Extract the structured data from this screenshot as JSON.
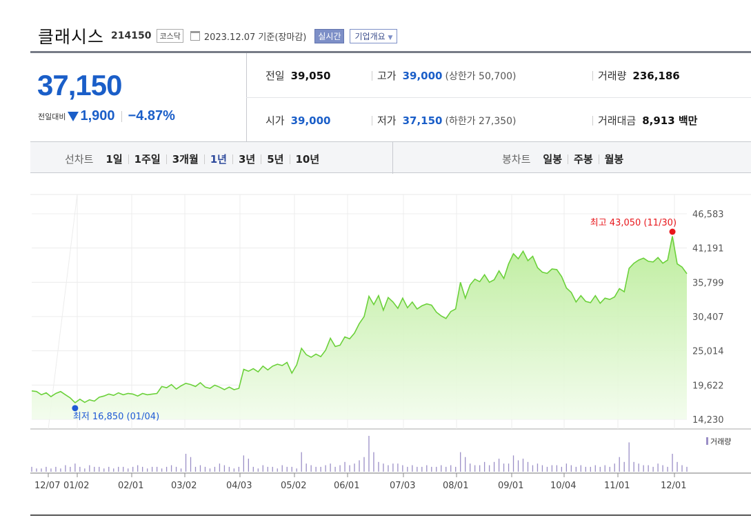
{
  "header": {
    "name": "클래시스",
    "code": "214150",
    "market": "코스닥",
    "date": "2023.12.07 기준(장마감)",
    "realtime": "실시간",
    "corp_info": "기업개요"
  },
  "price": {
    "current": "37,150",
    "change_label": "전일대비",
    "change": "1,900",
    "change_pct": "−4.87%",
    "direction": "down",
    "color_down": "#1a5ec8"
  },
  "stats": {
    "prev_label": "전일",
    "prev": "39,050",
    "high_label": "고가",
    "high": "39,000",
    "upper_limit": "(상한가 50,700)",
    "volume_label": "거래량",
    "volume": "236,186",
    "open_label": "시가",
    "open": "39,000",
    "low_label": "저가",
    "low": "37,150",
    "lower_limit": "(하한가 27,350)",
    "amount_label": "거래대금",
    "amount": "8,913 백만"
  },
  "line_tabs": {
    "label": "선차트",
    "items": [
      "1일",
      "1주일",
      "3개월",
      "1년",
      "3년",
      "5년",
      "10년"
    ],
    "selected": "1년"
  },
  "candle_tabs": {
    "label": "봉차트",
    "items": [
      "일봉",
      "주봉",
      "월봉"
    ]
  },
  "chart_data": {
    "type": "area",
    "y_ticks": [
      "46,583",
      "41,191",
      "35,799",
      "30,407",
      "25,014",
      "19,622",
      "14,230"
    ],
    "ylim": [
      14230,
      46583
    ],
    "x_ticks": [
      "12/07",
      "01/02",
      "02/01",
      "03/02",
      "04/03",
      "05/02",
      "06/01",
      "07/03",
      "08/01",
      "09/01",
      "10/04",
      "11/01",
      "12/01"
    ],
    "max_label": "최고 43,050 (11/30)",
    "min_label": "최저 16,850 (01/04)",
    "volume_label": "거래량",
    "series": [
      {
        "values": [
          18700,
          18600,
          18100,
          18400,
          17800,
          18300,
          18600,
          18100,
          17600,
          16850,
          17400,
          16900,
          17300,
          17100,
          17700,
          17900,
          18200,
          18000,
          18400,
          18100,
          18300,
          18200,
          17900,
          18300,
          18100,
          18200,
          18300,
          19400,
          19200,
          19700,
          19000,
          19500,
          19900,
          19700,
          19400,
          20000,
          19300,
          19100,
          19600,
          19300,
          18900,
          19300,
          18900,
          19100,
          22100,
          21800,
          22200,
          21700,
          22600,
          22000,
          22600,
          22900,
          22700,
          23200,
          21500,
          22800,
          25400,
          24400,
          24000,
          24500,
          24100,
          25100,
          27000,
          25700,
          25900,
          27200,
          26900,
          27800,
          29300,
          30400,
          33600,
          32300,
          33700,
          31400,
          33400,
          32700,
          31700,
          33300,
          31800,
          32700,
          31600,
          32100,
          32400,
          32200,
          31100,
          30500,
          30100,
          31200,
          31600,
          35800,
          33300,
          35400,
          36300,
          35900,
          37000,
          35800,
          36200,
          37600,
          36400,
          38700,
          40300,
          39500,
          40700,
          39200,
          39900,
          38100,
          37400,
          37200,
          37900,
          37800,
          36700,
          34900,
          34200,
          32700,
          33700,
          32800,
          32600,
          33700,
          32500,
          33300,
          33100,
          33500,
          34800,
          34300,
          38000,
          38800,
          39300,
          39600,
          39100,
          39000,
          39700,
          38800,
          39300,
          43050,
          38700,
          38200,
          37150
        ]
      }
    ],
    "volume": [
      3,
      2,
      2,
      3,
      2,
      3,
      2,
      4,
      3,
      5,
      3,
      2,
      4,
      3,
      3,
      2,
      3,
      2,
      3,
      3,
      2,
      3,
      4,
      3,
      2,
      3,
      3,
      2,
      3,
      4,
      3,
      2,
      11,
      9,
      3,
      4,
      3,
      2,
      3,
      5,
      4,
      3,
      2,
      3,
      10,
      8,
      3,
      2,
      4,
      3,
      3,
      2,
      4,
      3,
      3,
      2,
      12,
      5,
      4,
      3,
      3,
      4,
      5,
      3,
      4,
      6,
      4,
      5,
      7,
      9,
      22,
      12,
      6,
      5,
      4,
      5,
      5,
      4,
      3,
      4,
      3,
      3,
      4,
      3,
      3,
      4,
      3,
      4,
      3,
      12,
      9,
      5,
      4,
      4,
      6,
      4,
      6,
      8,
      5,
      5,
      10,
      7,
      8,
      6,
      4,
      5,
      4,
      3,
      4,
      4,
      3,
      5,
      4,
      3,
      4,
      3,
      3,
      4,
      3,
      4,
      3,
      5,
      9,
      6,
      18,
      6,
      5,
      4,
      4,
      3,
      5,
      4,
      3,
      11,
      6,
      4,
      3
    ]
  }
}
